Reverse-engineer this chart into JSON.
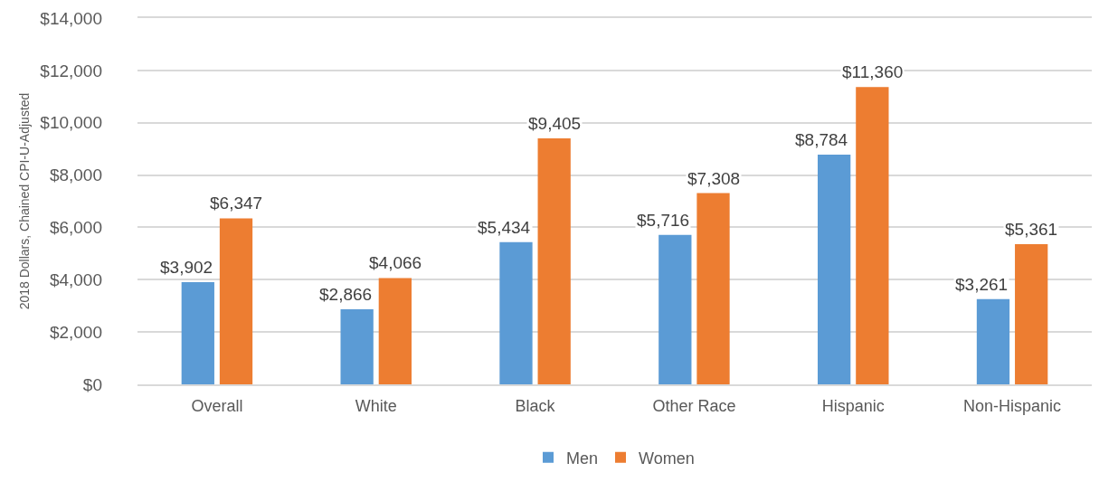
{
  "chart_data": {
    "type": "bar",
    "ylabel": "2018 Dollars, Chained CPI-U-Adjusted",
    "categories": [
      "Overall",
      "White",
      "Black",
      "Other Race",
      "Hispanic",
      "Non-Hispanic"
    ],
    "series": [
      {
        "name": "Men",
        "color": "#5b9bd5",
        "values": [
          3902,
          2866,
          5434,
          5716,
          8784,
          3261
        ],
        "value_labels": [
          "$3,902",
          "$2,866",
          "$5,434",
          "$5,716",
          "$8,784",
          "$3,261"
        ]
      },
      {
        "name": "Women",
        "color": "#ed7d31",
        "values": [
          6347,
          4066,
          9405,
          7308,
          11360,
          5361
        ],
        "value_labels": [
          "$6,347",
          "$4,066",
          "$9,405",
          "$7,308",
          "$11,360",
          "$5,361"
        ]
      }
    ],
    "ylim": [
      0,
      14000
    ],
    "yticks": [
      {
        "value": 0,
        "label": "$0"
      },
      {
        "value": 2000,
        "label": "$2,000"
      },
      {
        "value": 4000,
        "label": "$4,000"
      },
      {
        "value": 6000,
        "label": "$6,000"
      },
      {
        "value": 8000,
        "label": "$8,000"
      },
      {
        "value": 10000,
        "label": "$10,000"
      },
      {
        "value": 12000,
        "label": "$12,000"
      },
      {
        "value": 14000,
        "label": "$14,000"
      }
    ],
    "grid": "y",
    "legend": "bottom"
  }
}
